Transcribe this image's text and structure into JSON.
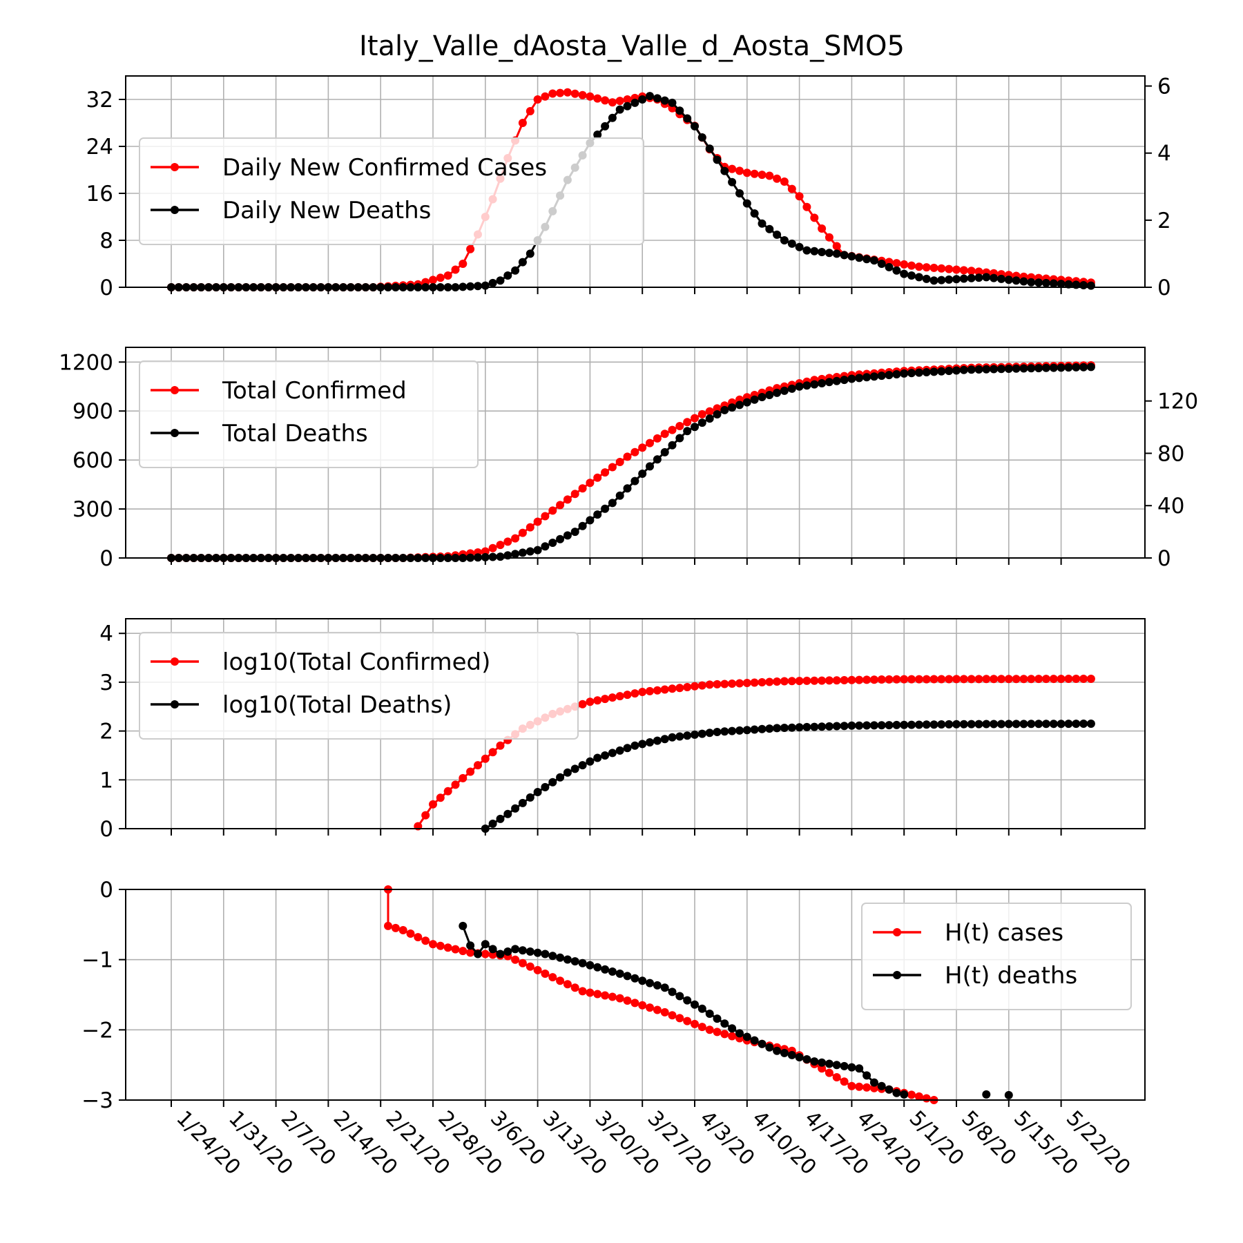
{
  "title": "Italy_Valle_dAosta_Valle_d_Aosta_SMO5",
  "x_dates": [
    "1/24/20",
    "1/31/20",
    "2/7/20",
    "2/14/20",
    "2/21/20",
    "2/28/20",
    "3/6/20",
    "3/13/20",
    "3/20/20",
    "3/27/20",
    "4/3/20",
    "4/10/20",
    "4/17/20",
    "4/24/20",
    "5/1/20",
    "5/8/20",
    "5/15/20",
    "5/22/20"
  ],
  "colors": {
    "cases": "#ff0000",
    "deaths": "#000000",
    "grid": "#b0b0b0"
  },
  "chart_data": [
    {
      "type": "line",
      "x_start": "1/24/20",
      "x_end": "5/26/20",
      "x_ticks": [
        "1/24/20",
        "1/31/20",
        "2/7/20",
        "2/14/20",
        "2/21/20",
        "2/28/20",
        "3/6/20",
        "3/13/20",
        "3/20/20",
        "3/27/20",
        "4/3/20",
        "4/10/20",
        "4/17/20",
        "4/24/20",
        "5/1/20",
        "5/8/20",
        "5/15/20",
        "5/22/20"
      ],
      "left_axis": {
        "ylim": [
          0,
          36
        ],
        "ticks": [
          "0",
          "8",
          "16",
          "24",
          "32"
        ]
      },
      "right_axis": {
        "ylim": [
          0,
          6.3
        ],
        "ticks": [
          "0",
          "2",
          "4",
          "6"
        ]
      },
      "legend_position": "upper-left",
      "grid": true,
      "series": [
        {
          "name": "Daily New Confirmed Cases",
          "color": "#ff0000",
          "axis": "left",
          "points": [
            [
              "1/24/20",
              0
            ],
            [
              "2/20/20",
              0
            ],
            [
              "2/26/20",
              0.5
            ],
            [
              "3/1/20",
              2
            ],
            [
              "3/3/20",
              4
            ],
            [
              "3/5/20",
              9
            ],
            [
              "3/7/20",
              15
            ],
            [
              "3/9/20",
              22
            ],
            [
              "3/11/20",
              28
            ],
            [
              "3/13/20",
              32
            ],
            [
              "3/15/20",
              33
            ],
            [
              "3/17/20",
              33.2
            ],
            [
              "3/20/20",
              32.5
            ],
            [
              "3/23/20",
              31.5
            ],
            [
              "3/25/20",
              32
            ],
            [
              "3/27/20",
              32.5
            ],
            [
              "3/29/20",
              32
            ],
            [
              "3/31/20",
              30.5
            ],
            [
              "4/3/20",
              27.5
            ],
            [
              "4/5/20",
              23.5
            ],
            [
              "4/7/20",
              20.5
            ],
            [
              "4/10/20",
              19.5
            ],
            [
              "4/13/20",
              19
            ],
            [
              "4/15/20",
              18
            ],
            [
              "4/17/20",
              15.5
            ],
            [
              "4/20/20",
              10
            ],
            [
              "4/23/20",
              5.5
            ],
            [
              "4/28/20",
              4.5
            ],
            [
              "5/3/20",
              3.5
            ],
            [
              "5/10/20",
              2.8
            ],
            [
              "5/17/20",
              1.8
            ],
            [
              "5/26/20",
              0.8
            ]
          ]
        },
        {
          "name": "Daily New Deaths",
          "color": "#000000",
          "axis": "right",
          "points": [
            [
              "1/24/20",
              0
            ],
            [
              "3/2/20",
              0
            ],
            [
              "3/6/20",
              0.05
            ],
            [
              "3/8/20",
              0.2
            ],
            [
              "3/10/20",
              0.5
            ],
            [
              "3/12/20",
              1
            ],
            [
              "3/14/20",
              1.8
            ],
            [
              "3/17/20",
              3.2
            ],
            [
              "3/20/20",
              4.3
            ],
            [
              "3/24/20",
              5.3
            ],
            [
              "3/28/20",
              5.7
            ],
            [
              "3/31/20",
              5.5
            ],
            [
              "4/3/20",
              4.8
            ],
            [
              "4/6/20",
              3.8
            ],
            [
              "4/9/20",
              2.8
            ],
            [
              "4/12/20",
              1.9
            ],
            [
              "4/15/20",
              1.4
            ],
            [
              "4/18/20",
              1.1
            ],
            [
              "4/22/20",
              1.0
            ],
            [
              "4/27/20",
              0.8
            ],
            [
              "5/1/20",
              0.4
            ],
            [
              "5/5/20",
              0.2
            ],
            [
              "5/12/20",
              0.3
            ],
            [
              "5/18/20",
              0.15
            ],
            [
              "5/26/20",
              0.05
            ]
          ]
        }
      ]
    },
    {
      "type": "line",
      "x_start": "1/24/20",
      "x_end": "5/26/20",
      "left_axis": {
        "ylim": [
          0,
          1290
        ],
        "ticks": [
          "0",
          "300",
          "600",
          "900",
          "1200"
        ]
      },
      "right_axis": {
        "ylim": [
          0,
          161
        ],
        "ticks": [
          "0",
          "40",
          "80",
          "120"
        ]
      },
      "legend_position": "upper-left",
      "grid": true,
      "series": [
        {
          "name": "Total Confirmed",
          "color": "#ff0000",
          "axis": "left",
          "points": [
            [
              "1/24/20",
              0
            ],
            [
              "2/24/20",
              0
            ],
            [
              "3/1/20",
              10
            ],
            [
              "3/6/20",
              40
            ],
            [
              "3/10/20",
              120
            ],
            [
              "3/15/20",
              290
            ],
            [
              "3/20/20",
              460
            ],
            [
              "3/25/20",
              620
            ],
            [
              "3/30/20",
              760
            ],
            [
              "4/4/20",
              880
            ],
            [
              "4/9/20",
              970
            ],
            [
              "4/14/20",
              1040
            ],
            [
              "4/19/20",
              1090
            ],
            [
              "4/24/20",
              1120
            ],
            [
              "5/1/20",
              1145
            ],
            [
              "5/10/20",
              1165
            ],
            [
              "5/26/20",
              1180
            ]
          ]
        },
        {
          "name": "Total Deaths",
          "color": "#000000",
          "axis": "right",
          "points": [
            [
              "1/24/20",
              0
            ],
            [
              "3/3/20",
              0
            ],
            [
              "3/8/20",
              1
            ],
            [
              "3/13/20",
              6
            ],
            [
              "3/18/20",
              20
            ],
            [
              "3/23/20",
              42
            ],
            [
              "3/28/20",
              70
            ],
            [
              "4/2/20",
              97
            ],
            [
              "4/7/20",
              113
            ],
            [
              "4/12/20",
              123
            ],
            [
              "4/17/20",
              131
            ],
            [
              "4/24/20",
              137
            ],
            [
              "5/1/20",
              141
            ],
            [
              "5/10/20",
              144
            ],
            [
              "5/26/20",
              146
            ]
          ]
        }
      ]
    },
    {
      "type": "line",
      "x_start": "1/24/20",
      "x_end": "5/26/20",
      "left_axis": {
        "ylim": [
          0,
          4.3
        ],
        "ticks": [
          "0",
          "1",
          "2",
          "3",
          "4"
        ]
      },
      "legend_position": "upper-left",
      "grid": true,
      "series": [
        {
          "name": "log10(Total Confirmed)",
          "color": "#ff0000",
          "axis": "left",
          "points": [
            [
              "2/26/20",
              0.05
            ],
            [
              "2/28/20",
              0.5
            ],
            [
              "3/2/20",
              0.9
            ],
            [
              "3/5/20",
              1.3
            ],
            [
              "3/8/20",
              1.7
            ],
            [
              "3/11/20",
              2.05
            ],
            [
              "3/15/20",
              2.35
            ],
            [
              "3/20/20",
              2.6
            ],
            [
              "3/27/20",
              2.8
            ],
            [
              "4/5/20",
              2.95
            ],
            [
              "4/15/20",
              3.02
            ],
            [
              "4/30/20",
              3.06
            ],
            [
              "5/26/20",
              3.07
            ]
          ]
        },
        {
          "name": "log10(Total Deaths)",
          "color": "#000000",
          "axis": "left",
          "points": [
            [
              "3/6/20",
              0.0
            ],
            [
              "3/9/20",
              0.3
            ],
            [
              "3/13/20",
              0.75
            ],
            [
              "3/17/20",
              1.15
            ],
            [
              "3/21/20",
              1.45
            ],
            [
              "3/26/20",
              1.7
            ],
            [
              "3/31/20",
              1.87
            ],
            [
              "4/6/20",
              1.98
            ],
            [
              "4/14/20",
              2.06
            ],
            [
              "4/24/20",
              2.11
            ],
            [
              "5/8/20",
              2.14
            ],
            [
              "5/26/20",
              2.15
            ]
          ]
        }
      ]
    },
    {
      "type": "line",
      "x_start": "1/24/20",
      "x_end": "5/26/20",
      "left_axis": {
        "ylim": [
          -3,
          0
        ],
        "ticks": [
          "0",
          "−1",
          "−2",
          "−3"
        ]
      },
      "legend_position": "upper-right",
      "grid": true,
      "series": [
        {
          "name": "H(t) cases",
          "color": "#ff0000",
          "axis": "left",
          "points": [
            [
              "2/22/20",
              0.0
            ],
            [
              "2/22/20",
              -0.52
            ],
            [
              "2/24/20",
              -0.58
            ],
            [
              "2/28/20",
              -0.78
            ],
            [
              "3/4/20",
              -0.9
            ],
            [
              "3/9/20",
              -0.95
            ],
            [
              "3/14/20",
              -1.2
            ],
            [
              "3/19/20",
              -1.45
            ],
            [
              "3/24/20",
              -1.55
            ],
            [
              "3/30/20",
              -1.75
            ],
            [
              "4/5/20",
              -2.0
            ],
            [
              "4/10/20",
              -2.15
            ],
            [
              "4/16/20",
              -2.3
            ],
            [
              "4/20/20",
              -2.55
            ],
            [
              "4/24/20",
              -2.8
            ],
            [
              "4/29/20",
              -2.85
            ],
            [
              "5/3/20",
              -2.95
            ],
            [
              "5/5/20",
              -3.0
            ]
          ]
        },
        {
          "name": "H(t) deaths",
          "color": "#000000",
          "axis": "left",
          "points": [
            [
              "3/3/20",
              -0.52
            ],
            [
              "3/4/20",
              -0.8
            ],
            [
              "3/5/20",
              -0.92
            ],
            [
              "3/6/20",
              -0.78
            ],
            [
              "3/8/20",
              -0.92
            ],
            [
              "3/10/20",
              -0.85
            ],
            [
              "3/14/20",
              -0.92
            ],
            [
              "3/19/20",
              -1.05
            ],
            [
              "3/24/20",
              -1.2
            ],
            [
              "3/30/20",
              -1.4
            ],
            [
              "4/4/20",
              -1.7
            ],
            [
              "4/9/20",
              -2.05
            ],
            [
              "4/14/20",
              -2.3
            ],
            [
              "4/19/20",
              -2.45
            ],
            [
              "4/25/20",
              -2.55
            ],
            [
              "4/27/20",
              -2.75
            ],
            [
              "4/30/20",
              -2.9
            ],
            [
              "5/1/20",
              -2.92
            ]
          ]
        },
        {
          "name": "",
          "color": "#000000",
          "axis": "left",
          "style": "points",
          "points": [
            [
              "5/12/20",
              -2.92
            ],
            [
              "5/15/20",
              -2.93
            ]
          ]
        }
      ]
    }
  ]
}
